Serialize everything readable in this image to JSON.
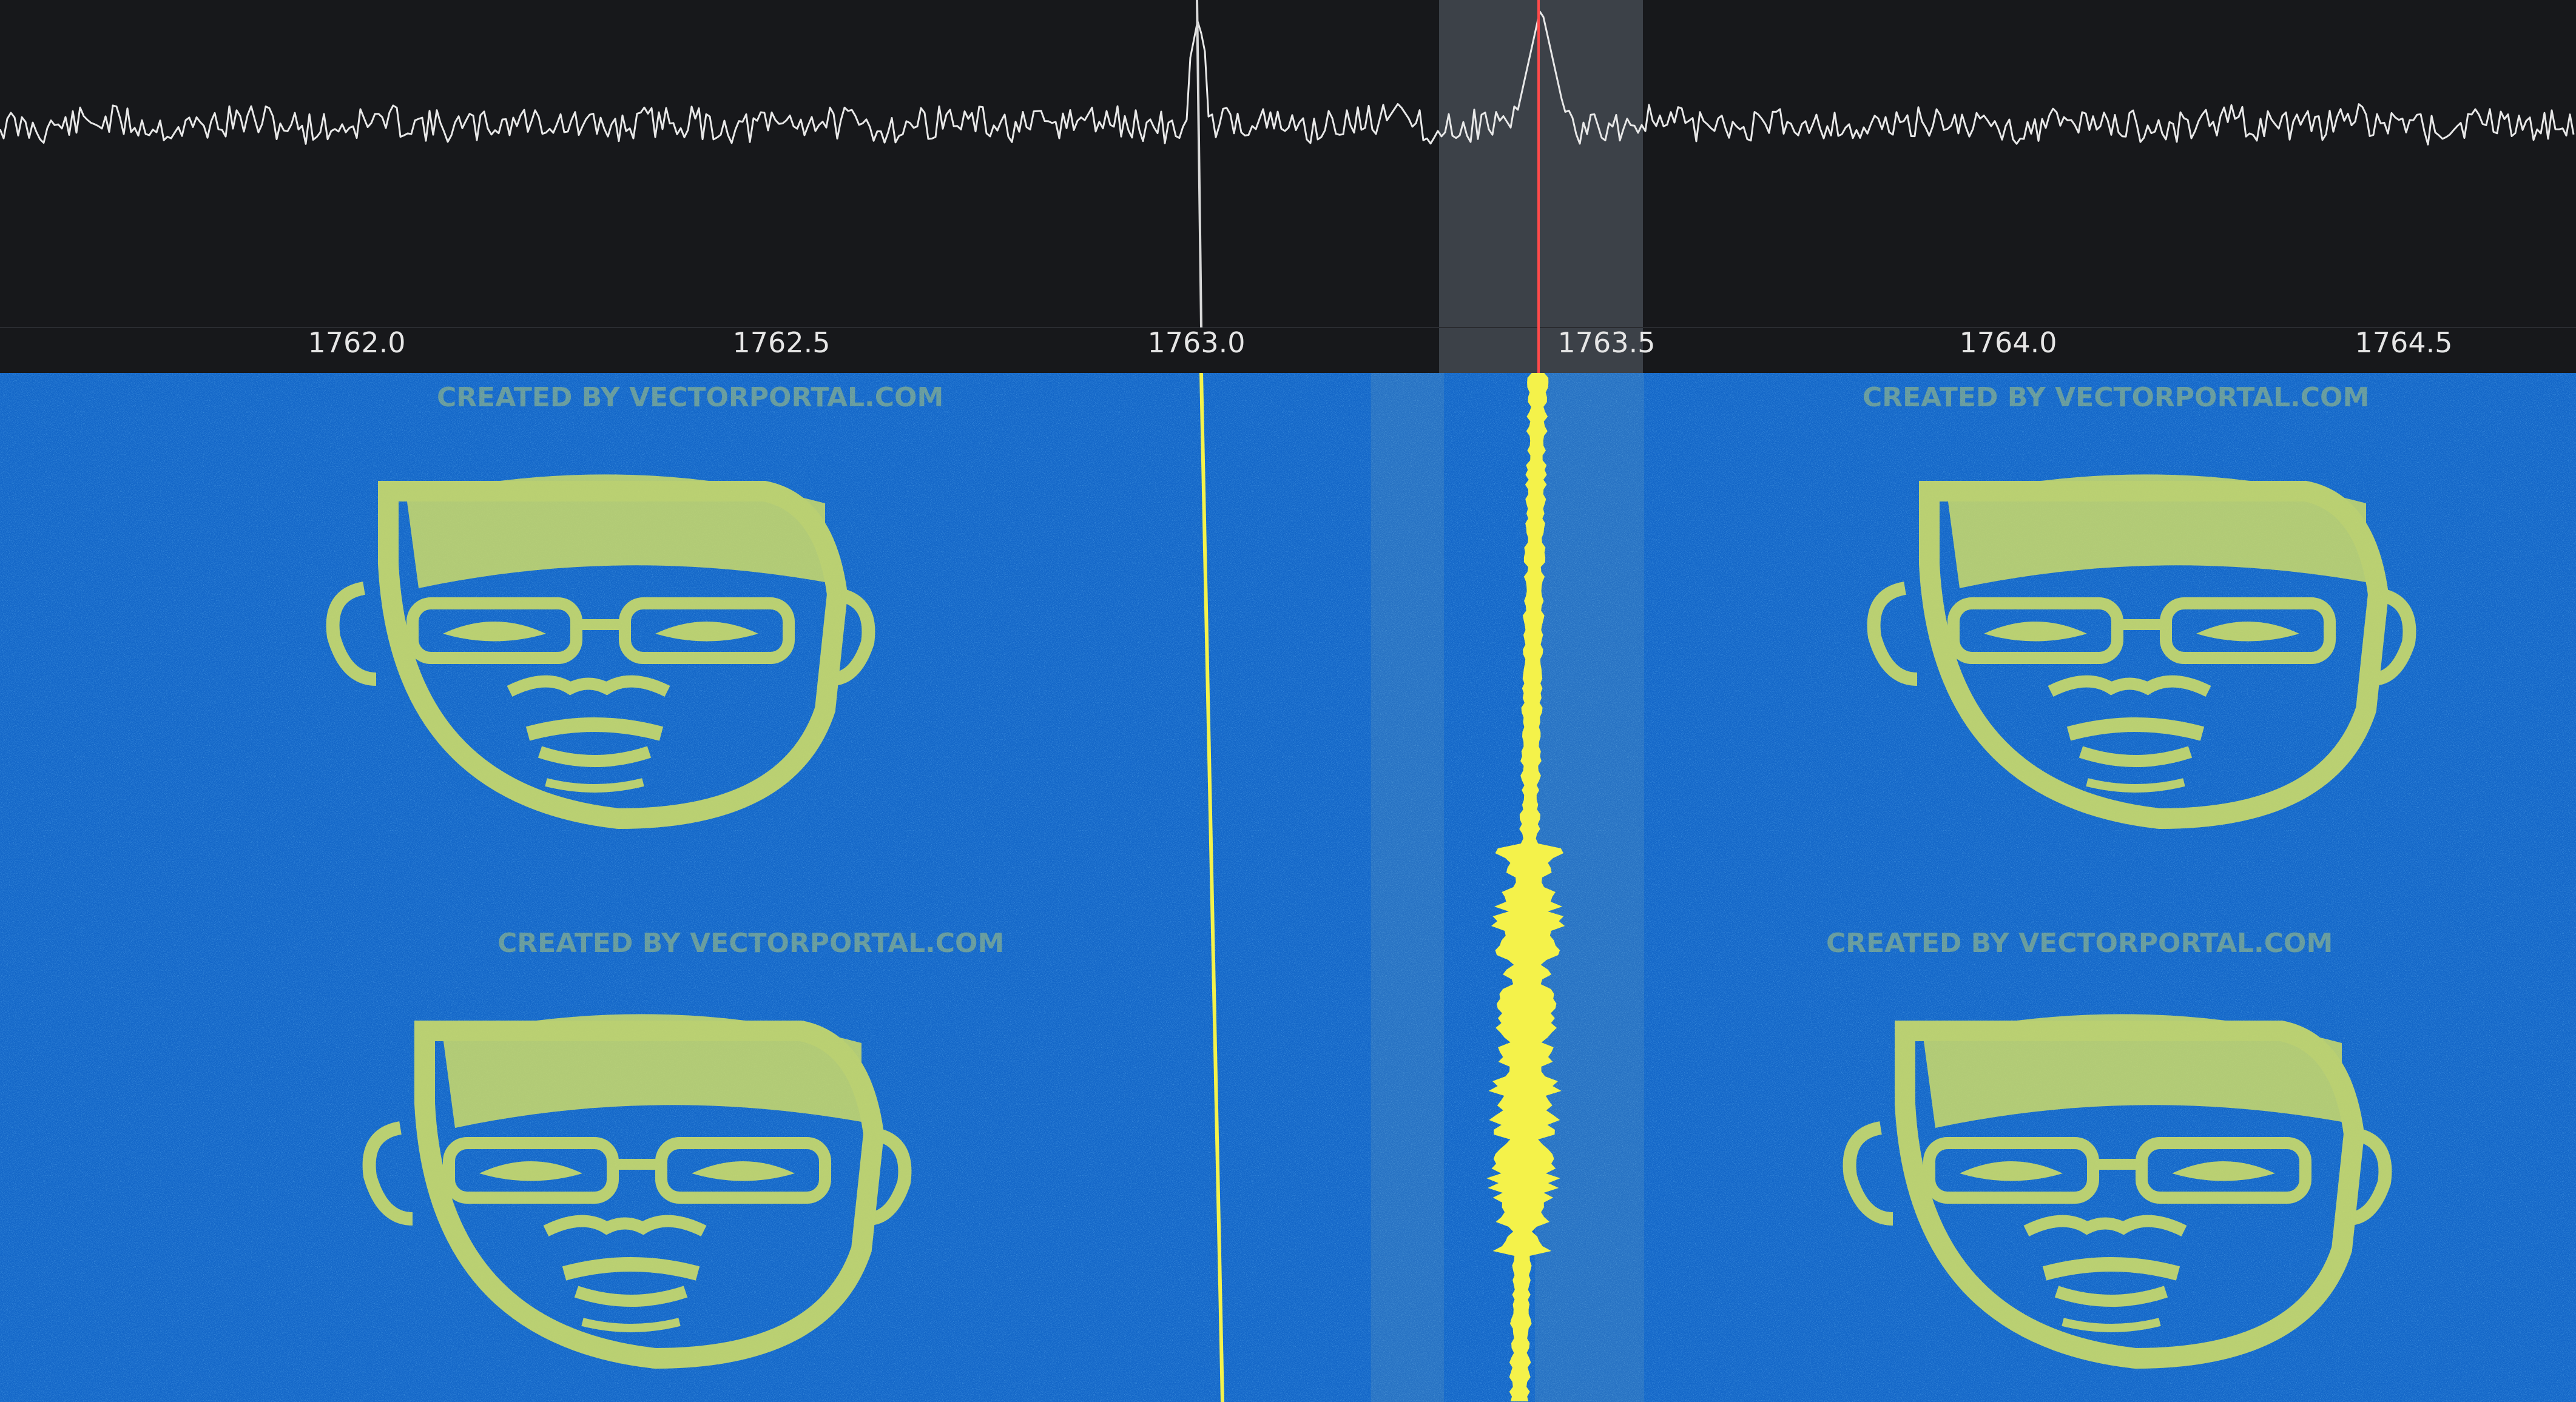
{
  "spectrum": {
    "axis": {
      "ticks": [
        "1762.0",
        "1762.5",
        "1763.0",
        "1763.5",
        "1764.0",
        "1764.5"
      ]
    },
    "colors": {
      "background": "#17181b",
      "trace": "#e8e8e8",
      "passband": "#4a4f58",
      "tuning_marker": "#ff4a4a"
    }
  },
  "waterfall": {
    "colors": {
      "background": "#1467c8",
      "noise_light": "#2a86e6",
      "image": "#c9d96a",
      "carrier": "#f4f24a"
    },
    "watermark": "CREATED BY VECTORPORTAL.COM",
    "image_icons": [
      "face-portrait-icon",
      "face-portrait-icon",
      "face-portrait-icon",
      "face-portrait-icon"
    ]
  }
}
